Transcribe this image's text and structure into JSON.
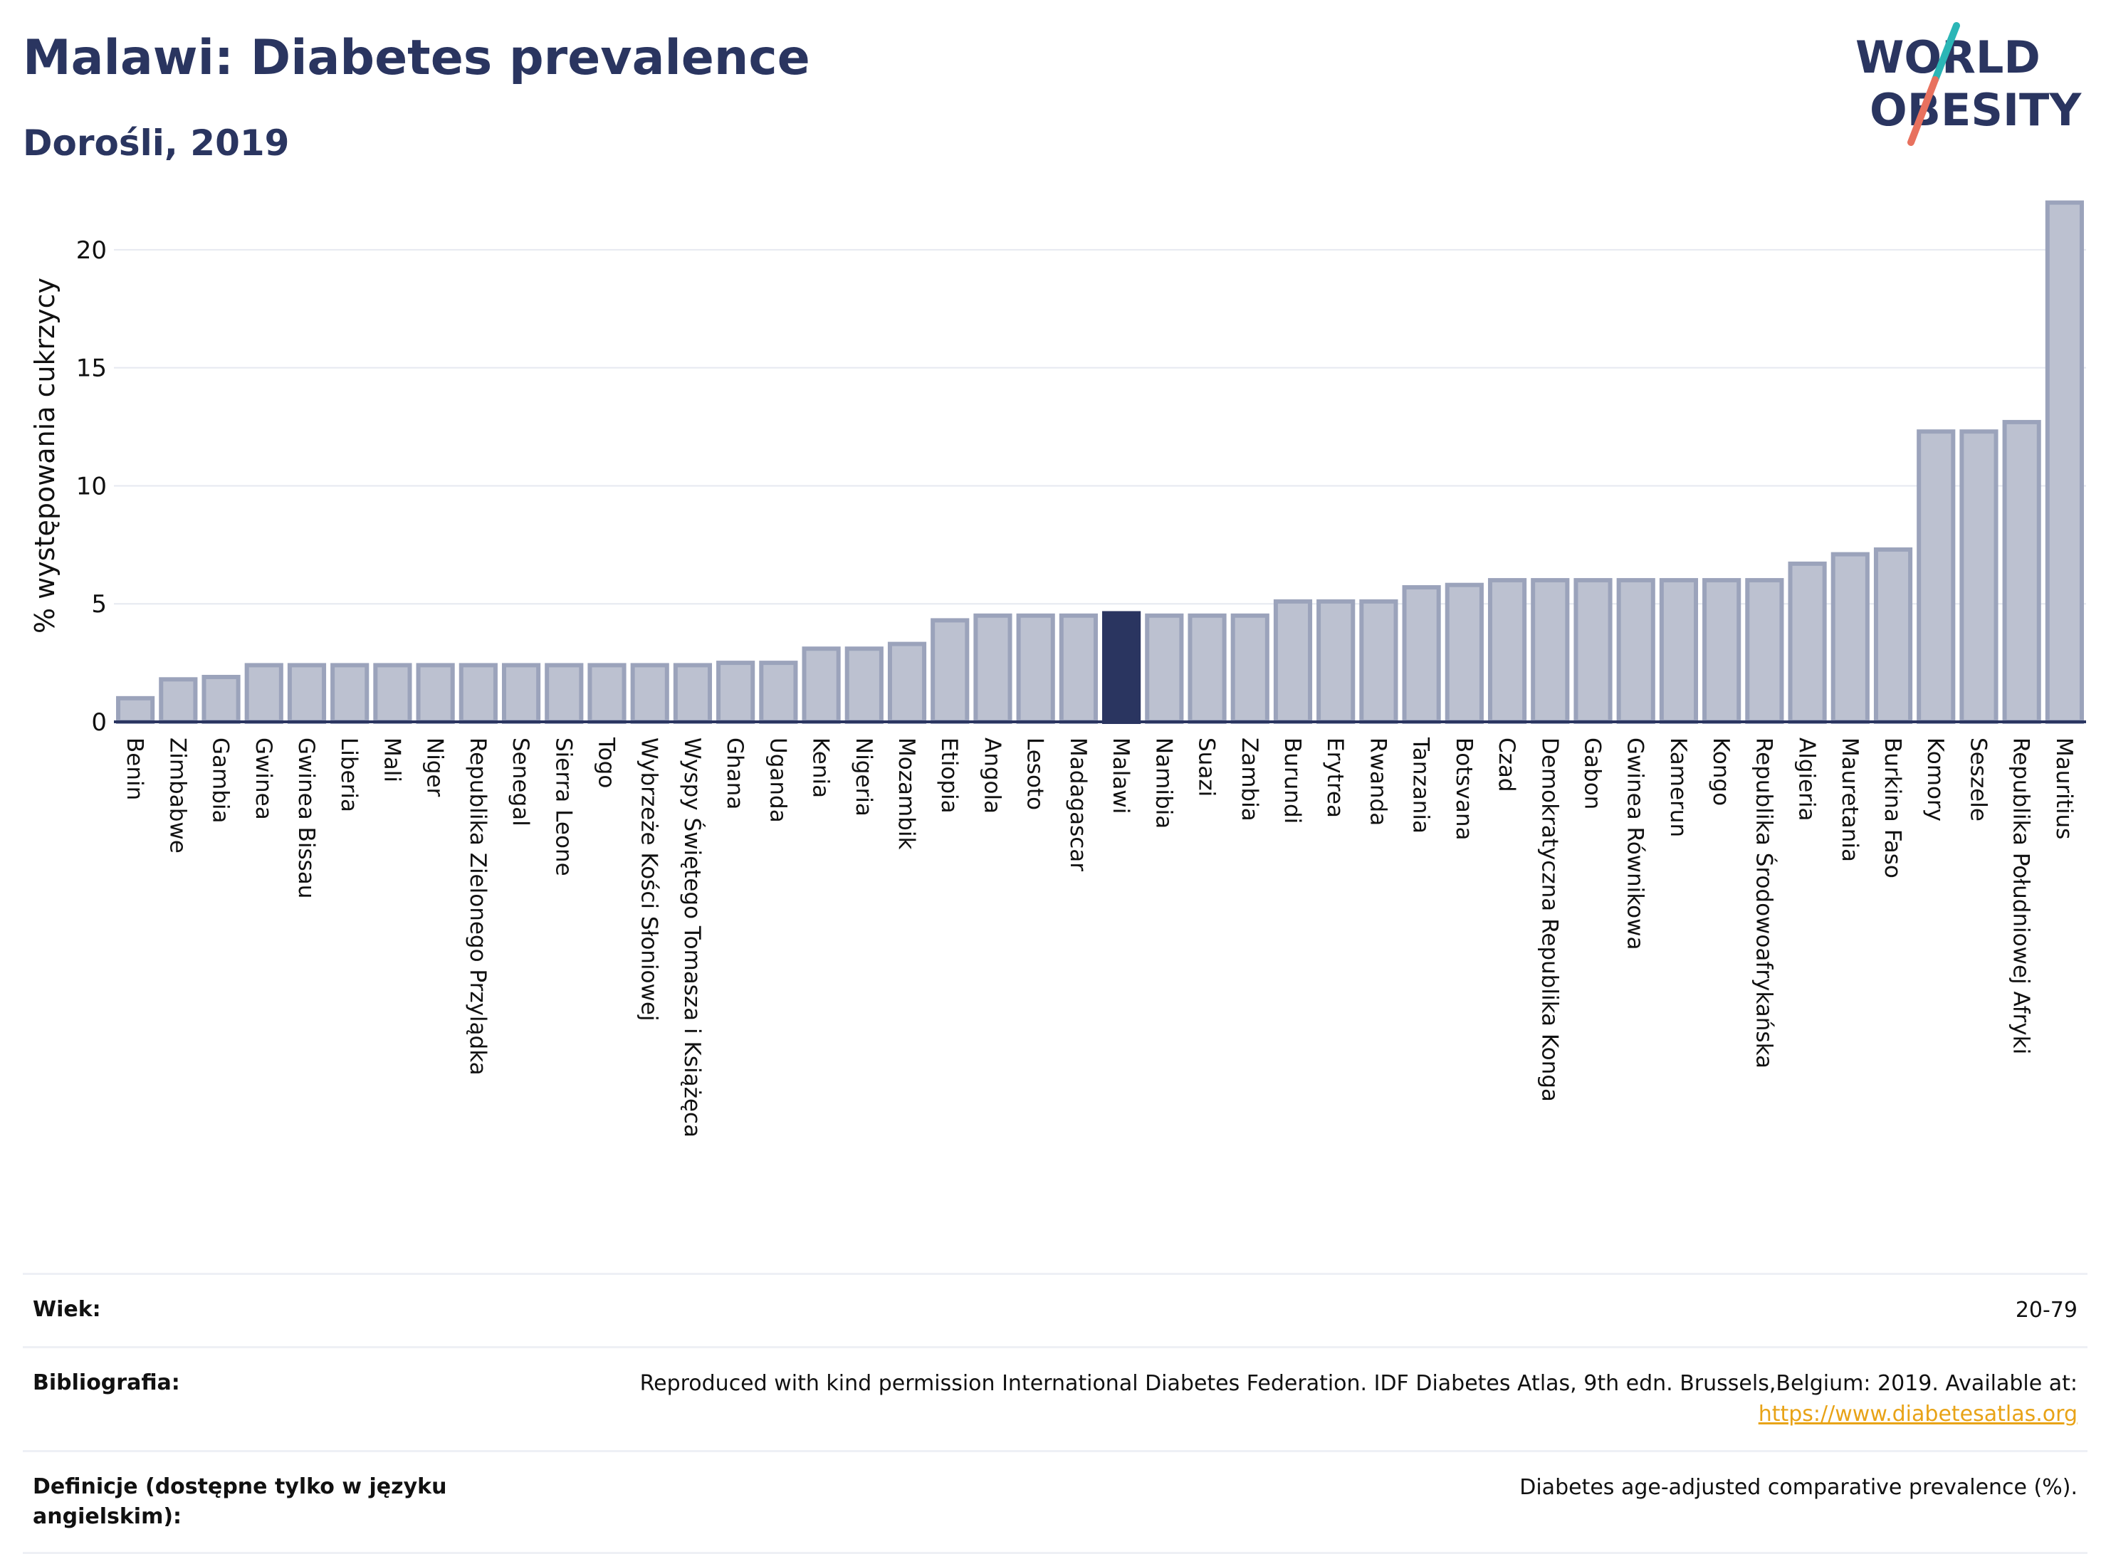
{
  "header": {
    "title": "Malawi: Diabetes prevalence",
    "subtitle": "Dorośli, 2019",
    "logo_line1": "WORLD",
    "logo_line2": "OBESITY"
  },
  "colors": {
    "bar": "#bcc1d0",
    "bar_border": "#9ba3bb",
    "highlight": "#2a3560",
    "title": "#2a3560",
    "logo_teal": "#2bb6b6",
    "logo_coral": "#e8715e",
    "link": "#e8a317"
  },
  "chart_data": {
    "type": "bar",
    "ylabel": "% występowania cukrzycy",
    "ylim": [
      0,
      22.5
    ],
    "yticks": [
      0,
      5,
      10,
      15,
      20
    ],
    "grid": true,
    "highlight": "Malawi",
    "categories": [
      "Benin",
      "Zimbabwe",
      "Gambia",
      "Gwinea",
      "Gwinea Bissau",
      "Liberia",
      "Mali",
      "Niger",
      "Republika Zielonego Przylądka",
      "Senegal",
      "Sierra Leone",
      "Togo",
      "Wybrzeże Kości Słoniowej",
      "Wyspy Świętego Tomasza i Książęca",
      "Ghana",
      "Uganda",
      "Kenia",
      "Nigeria",
      "Mozambik",
      "Etiopia",
      "Angola",
      "Lesoto",
      "Madagascar",
      "Malawi",
      "Namibia",
      "Suazi",
      "Zambia",
      "Burundi",
      "Erytrea",
      "Rwanda",
      "Tanzania",
      "Botsvana",
      "Czad",
      "Demokratyczna Republika Konga",
      "Gabon",
      "Gwinea Równikowa",
      "Kamerun",
      "Kongo",
      "Republika Środowoafrykańska",
      "Algieria",
      "Mauretania",
      "Burkina Faso",
      "Komory",
      "Seszele",
      "Republika Południowej Afryki",
      "Mauritius"
    ],
    "values": [
      1.0,
      1.8,
      1.9,
      2.4,
      2.4,
      2.4,
      2.4,
      2.4,
      2.4,
      2.4,
      2.4,
      2.4,
      2.4,
      2.4,
      2.5,
      2.5,
      3.1,
      3.1,
      3.3,
      4.3,
      4.5,
      4.5,
      4.5,
      4.6,
      4.5,
      4.5,
      4.5,
      5.1,
      5.1,
      5.1,
      5.7,
      5.8,
      6.0,
      6.0,
      6.0,
      6.0,
      6.0,
      6.0,
      6.0,
      6.7,
      7.1,
      7.3,
      12.3,
      12.3,
      12.7,
      22.0
    ]
  },
  "info": {
    "age_label": "Wiek:",
    "age_value": "20-79",
    "bib_label": "Bibliografia:",
    "bib_text": "Reproduced with kind permission International Diabetes Federation. IDF Diabetes Atlas, 9th edn. Brussels,Belgium: 2019. Available at:",
    "bib_link": "https://www.diabetesatlas.org",
    "def_label": "Definicje (dostępne tylko w języku angielskim):",
    "def_value": "Diabetes age-adjusted comparative prevalence (%)."
  }
}
